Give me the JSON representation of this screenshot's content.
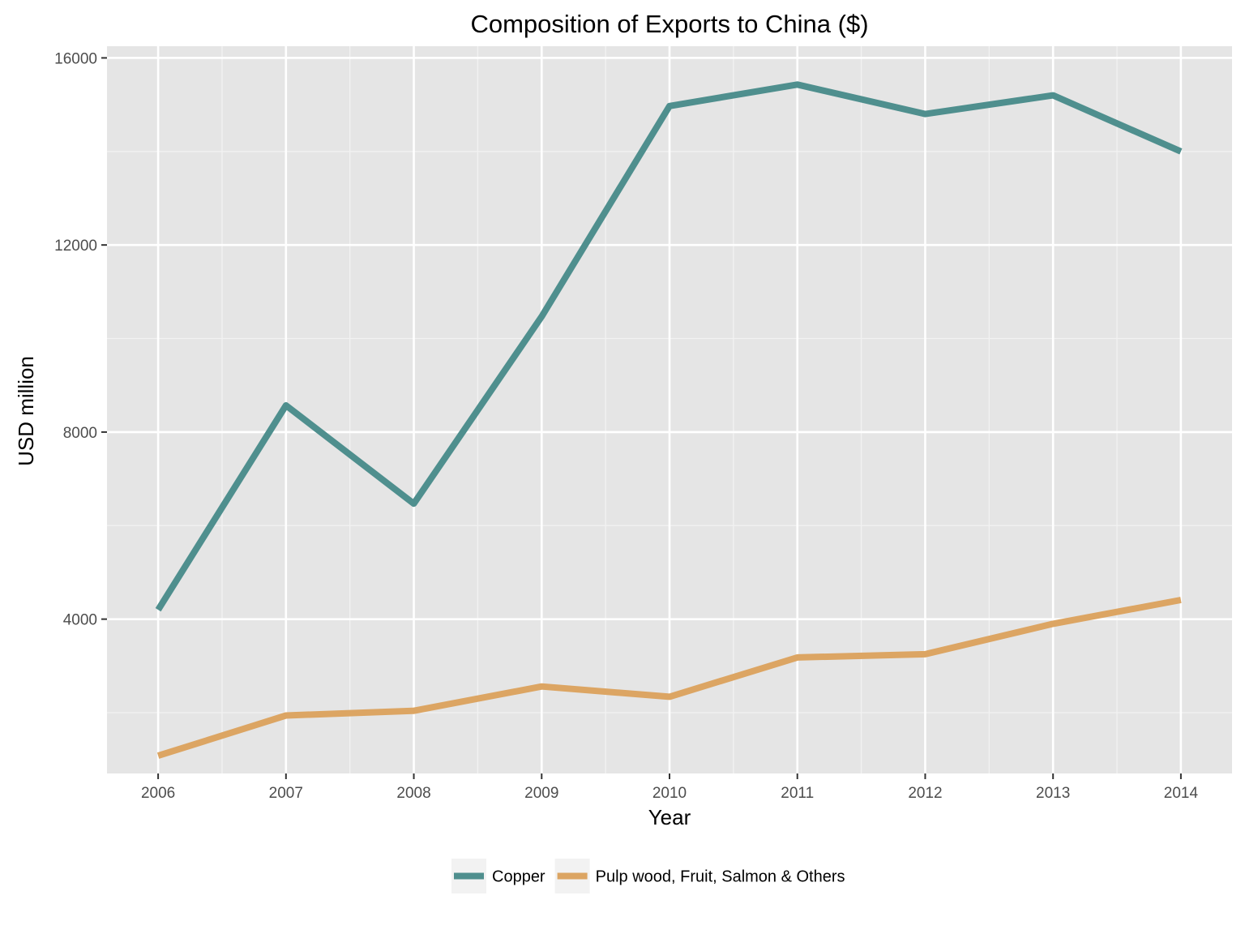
{
  "chart_data": {
    "type": "line",
    "title": "Composition of Exports to China ($)",
    "xlabel": "Year",
    "ylabel": "USD million",
    "x": [
      2006,
      2007,
      2008,
      2009,
      2010,
      2011,
      2012,
      2013,
      2014
    ],
    "x_tick_labels": [
      "2006",
      "2007",
      "2008",
      "2009",
      "2010",
      "2011",
      "2012",
      "2013",
      "2014"
    ],
    "y_ticks": [
      4000,
      8000,
      12000,
      16000
    ],
    "y_tick_labels": [
      "4000",
      "8000",
      "12000",
      "16000"
    ],
    "xlim": [
      2005.6,
      2014.4
    ],
    "ylim": [
      700,
      16250
    ],
    "grid": true,
    "legend_position": "bottom",
    "series": [
      {
        "name": "Copper",
        "color": "#4f8f8e",
        "values": [
          4200,
          8570,
          6470,
          10470,
          14970,
          15430,
          14800,
          15200,
          14000
        ]
      },
      {
        "name": "Pulp wood, Fruit, Salmon & Others",
        "color": "#dca563",
        "values": [
          1080,
          1940,
          2040,
          2560,
          2340,
          3180,
          3250,
          3900,
          4410
        ]
      }
    ]
  }
}
